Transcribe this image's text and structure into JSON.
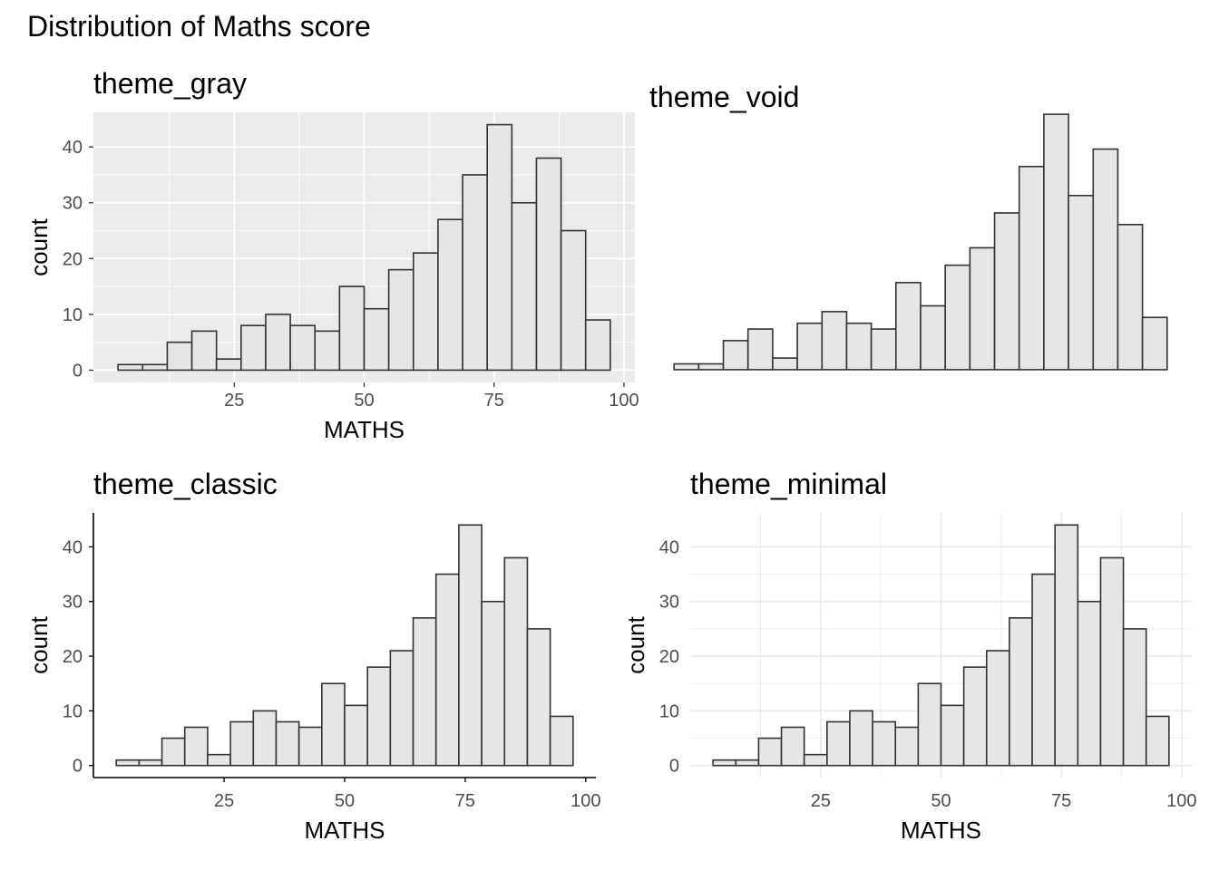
{
  "title": "Distribution of Maths score",
  "chart_data": {
    "type": "bar",
    "title": "Distribution of Maths score",
    "bins": 20,
    "bin_width": 4.7368,
    "x_range": [
      5,
      100
    ],
    "bin_centers": [
      5,
      9.737,
      14.474,
      19.211,
      23.947,
      28.684,
      33.421,
      38.158,
      42.895,
      47.632,
      52.368,
      57.105,
      61.842,
      66.579,
      71.316,
      76.053,
      80.789,
      85.526,
      90.263,
      95
    ],
    "counts": [
      1,
      1,
      5,
      7,
      2,
      8,
      10,
      8,
      7,
      15,
      11,
      18,
      21,
      27,
      35,
      44,
      30,
      38,
      25,
      9
    ],
    "xticks": [
      25,
      50,
      75,
      100
    ],
    "yticks": [
      0,
      10,
      20,
      30,
      40
    ],
    "ylim": [
      0,
      46.2
    ],
    "panels": [
      {
        "id": "gray",
        "title": "theme_gray",
        "xlabel": "MATHS",
        "ylabel": "count",
        "grid": true,
        "panel_background": "#ebebeb",
        "grid_color": "#ffffff",
        "axis_lines": false,
        "show_axes": true
      },
      {
        "id": "void",
        "title": "theme_void",
        "xlabel": "",
        "ylabel": "",
        "grid": false,
        "panel_background": "#ffffff",
        "grid_color": "",
        "axis_lines": false,
        "show_axes": false
      },
      {
        "id": "classic",
        "title": "theme_classic",
        "xlabel": "MATHS",
        "ylabel": "count",
        "grid": false,
        "panel_background": "#ffffff",
        "grid_color": "",
        "axis_lines": true,
        "show_axes": true
      },
      {
        "id": "minimal",
        "title": "theme_minimal",
        "xlabel": "MATHS",
        "ylabel": "count",
        "grid": true,
        "panel_background": "#ffffff",
        "grid_color": "#ebebeb",
        "axis_lines": false,
        "show_axes": true
      }
    ]
  }
}
